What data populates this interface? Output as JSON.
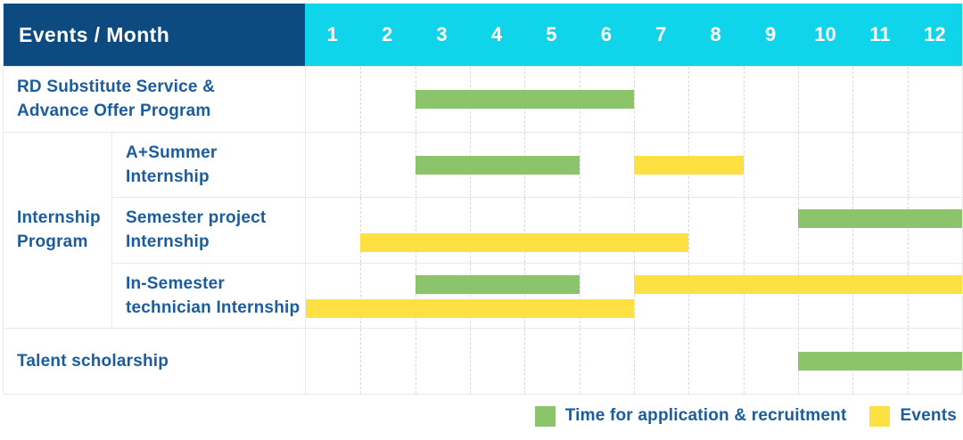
{
  "colors": {
    "header_bg": "#0d4a80",
    "month_header_bg": "#0fd4ea",
    "header_text": "#ffffff",
    "label_text": "#1b5c9e",
    "green": "#8bc46b",
    "yellow": "#fde143",
    "grid_border": "#e9e9e9",
    "grid_dash_border": "#d9d9d9"
  },
  "table": {
    "corner_label": "Events / Month",
    "months": [
      "1",
      "2",
      "3",
      "4",
      "5",
      "6",
      "7",
      "8",
      "9",
      "10",
      "11",
      "12"
    ]
  },
  "legend": {
    "items": [
      {
        "color_key": "green",
        "label": "Time for application & recruitment"
      },
      {
        "color_key": "yellow",
        "label": "Events"
      }
    ]
  },
  "chart_data": {
    "type": "gantt",
    "x_unit": "month",
    "x_ticks": [
      1,
      2,
      3,
      4,
      5,
      6,
      7,
      8,
      9,
      10,
      11,
      12
    ],
    "x_range_months": [
      1,
      12
    ],
    "legend": [
      {
        "label": "Time for application & recruitment",
        "color": "#8bc46b"
      },
      {
        "label": "Events",
        "color": "#fde143"
      }
    ],
    "group": {
      "label": "Internship Program",
      "label_lines": [
        "Internship",
        "Program"
      ],
      "member_row_indexes": [
        1,
        2,
        3
      ]
    },
    "rows": [
      {
        "label": "RD Substitute Service & Advance Offer Program",
        "label_lines": [
          "RD Substitute Service &",
          "Advance Offer Program"
        ],
        "in_group": false,
        "lane_count": 1,
        "bars": [
          {
            "series": "Time for application & recruitment",
            "color_key": "green",
            "start_month": 3,
            "end_month": 6,
            "lane": 0
          }
        ]
      },
      {
        "label": "A+Summer Internship",
        "label_lines": [
          "A+Summer",
          "Internship"
        ],
        "in_group": true,
        "lane_count": 1,
        "bars": [
          {
            "series": "Time for application & recruitment",
            "color_key": "green",
            "start_month": 3,
            "end_month": 5,
            "lane": 0
          },
          {
            "series": "Events",
            "color_key": "yellow",
            "start_month": 7,
            "end_month": 8,
            "lane": 0
          }
        ]
      },
      {
        "label": "Semester project Internship",
        "label_lines": [
          "Semester project",
          "Internship"
        ],
        "in_group": true,
        "lane_count": 2,
        "bars": [
          {
            "series": "Time for application & recruitment",
            "color_key": "green",
            "start_month": 10,
            "end_month": 12,
            "lane": 0
          },
          {
            "series": "Events",
            "color_key": "yellow",
            "start_month": 2,
            "end_month": 7,
            "lane": 1
          }
        ]
      },
      {
        "label": "In-Semester technician Internship",
        "label_lines": [
          "In-Semester",
          "technician Internship"
        ],
        "in_group": true,
        "lane_count": 2,
        "bars": [
          {
            "series": "Time for application & recruitment",
            "color_key": "green",
            "start_month": 3,
            "end_month": 5,
            "lane": 0
          },
          {
            "series": "Events",
            "color_key": "yellow",
            "start_month": 7,
            "end_month": 12,
            "lane": 0
          },
          {
            "series": "Events",
            "color_key": "yellow",
            "start_month": 1,
            "end_month": 6,
            "lane": 1
          }
        ]
      },
      {
        "label": "Talent scholarship",
        "label_lines": [
          "Talent scholarship"
        ],
        "in_group": false,
        "lane_count": 1,
        "bars": [
          {
            "series": "Time for application & recruitment",
            "color_key": "green",
            "start_month": 10,
            "end_month": 12,
            "lane": 0
          }
        ]
      }
    ]
  }
}
